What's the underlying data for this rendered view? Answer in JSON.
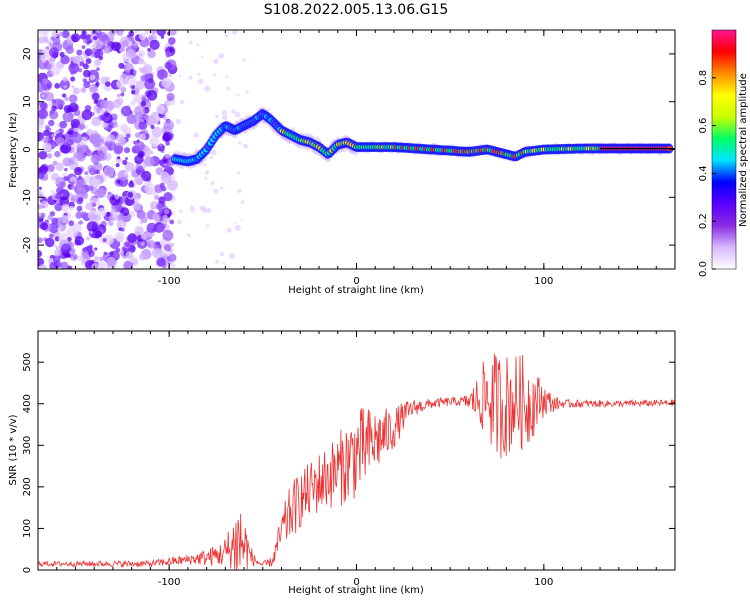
{
  "title": "S108.2022.005.13.06.G15",
  "chart_data": [
    {
      "type": "heatmap",
      "xlabel": "Height of straight line (km)",
      "ylabel": "Frequency (Hz)",
      "xlim": [
        -170,
        170
      ],
      "ylim": [
        -25,
        25
      ],
      "x_ticks": [
        -100,
        0,
        100
      ],
      "y_ticks": [
        -20,
        -10,
        0,
        10,
        20
      ],
      "grid": false,
      "colorbar": {
        "label": "Normalized spectral amplitude",
        "range": [
          0.0,
          1.0
        ],
        "ticks": [
          0.0,
          0.2,
          0.4,
          0.6,
          0.8
        ],
        "colors": [
          "#ffffff",
          "#d8b8ff",
          "#8a2be2",
          "#5a00ff",
          "#0000ff",
          "#00e5ff",
          "#00ff66",
          "#c8ff00",
          "#ffff00",
          "#ff8c00",
          "#ff0000",
          "#ff1493"
        ]
      },
      "ridge": {
        "x": [
          -97,
          -90,
          -85,
          -80,
          -75,
          -70,
          -65,
          -60,
          -55,
          -50,
          -45,
          -40,
          -35,
          -30,
          -25,
          -20,
          -15,
          -10,
          -5,
          0,
          20,
          40,
          60,
          70,
          80,
          85,
          90,
          100,
          120,
          140,
          168
        ],
        "y": [
          -2,
          -2.5,
          -2,
          0,
          3,
          5,
          4,
          5,
          6,
          7.5,
          6,
          4,
          3,
          2,
          1.5,
          0.5,
          -1,
          1,
          1.5,
          0.5,
          0.5,
          0,
          -0.5,
          0,
          -1,
          -1.5,
          -0.5,
          0,
          0.2,
          0.2,
          0.2
        ]
      }
    },
    {
      "type": "line",
      "xlabel": "Height of straight line (km)",
      "ylabel": "SNR (10 * v/v)",
      "xlim": [
        -170,
        170
      ],
      "ylim": [
        0,
        575
      ],
      "x_ticks": [
        -100,
        0,
        100
      ],
      "y_ticks": [
        0,
        100,
        200,
        300,
        400,
        500
      ],
      "grid": false,
      "color": "#ee3333",
      "envelope": {
        "x": [
          -170,
          -110,
          -100,
          -90,
          -80,
          -70,
          -65,
          -62,
          -60,
          -55,
          -50,
          -45,
          -40,
          -35,
          -30,
          -25,
          -20,
          -15,
          -10,
          -5,
          0,
          5,
          10,
          20,
          25,
          30,
          40,
          50,
          60,
          65,
          70,
          72,
          75,
          80,
          85,
          90,
          95,
          100,
          105,
          110,
          120,
          140,
          168
        ],
        "y": [
          15,
          15,
          20,
          25,
          30,
          40,
          60,
          70,
          60,
          25,
          12,
          20,
          90,
          140,
          170,
          190,
          210,
          225,
          240,
          260,
          280,
          295,
          310,
          340,
          370,
          390,
          400,
          405,
          405,
          410,
          420,
          405,
          400,
          395,
          410,
          400,
          405,
          410,
          400,
          400,
          400,
          400,
          402
        ]
      },
      "spread": {
        "x": [
          -170,
          -110,
          -90,
          -80,
          -72,
          -66,
          -63,
          -60,
          -57,
          -54,
          -50,
          -45,
          -40,
          -35,
          -30,
          -25,
          -20,
          -15,
          -10,
          -5,
          0,
          5,
          10,
          20,
          30,
          40,
          55,
          60,
          65,
          70,
          75,
          80,
          85,
          90,
          95,
          100,
          105,
          110,
          140,
          168
        ],
        "y": [
          6,
          8,
          12,
          20,
          30,
          70,
          120,
          80,
          30,
          10,
          8,
          12,
          50,
          70,
          70,
          70,
          75,
          80,
          90,
          100,
          110,
          100,
          80,
          50,
          20,
          12,
          10,
          20,
          60,
          110,
          130,
          130,
          110,
          120,
          80,
          40,
          20,
          10,
          8,
          8
        ]
      }
    }
  ]
}
